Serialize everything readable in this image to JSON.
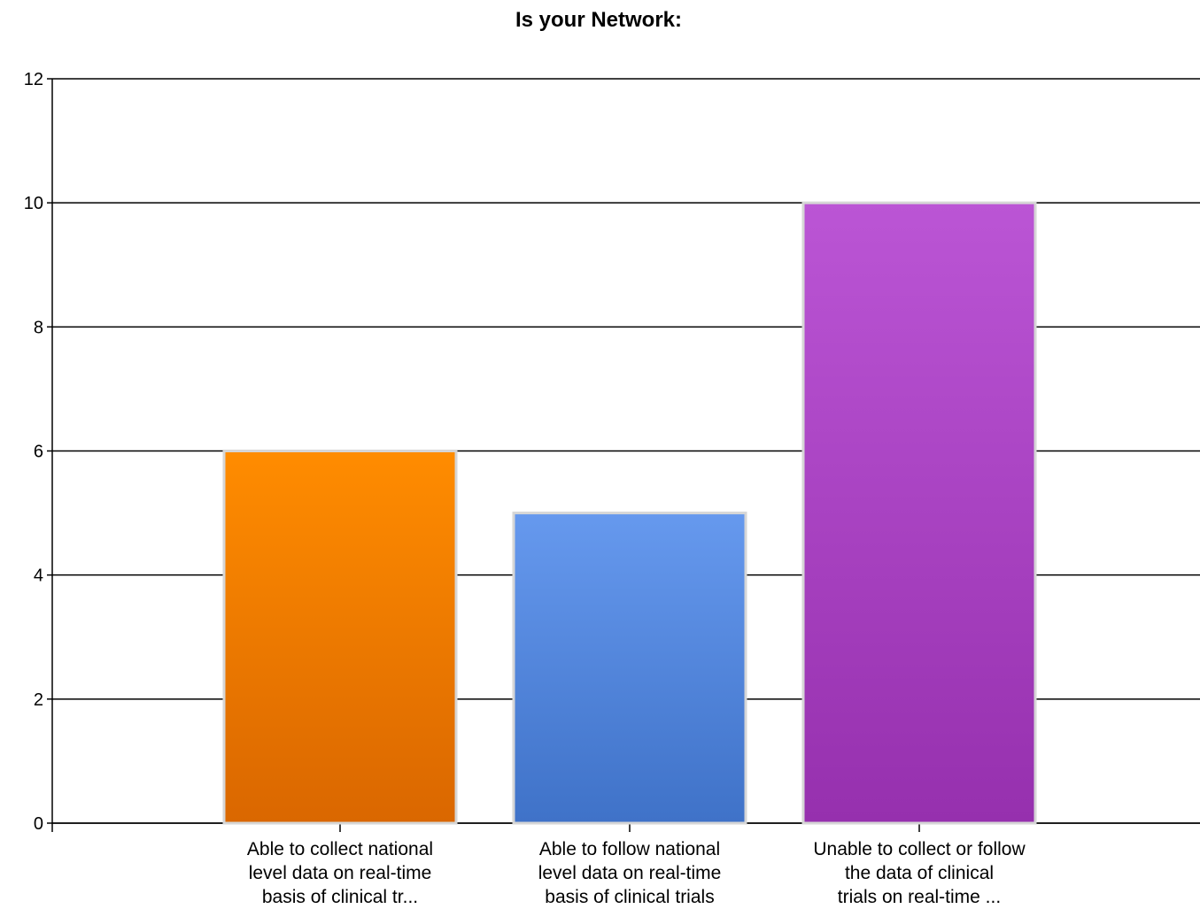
{
  "chart_data": {
    "type": "bar",
    "title": "Is your Network:",
    "xlabel": "",
    "ylabel": "",
    "ylim": [
      0,
      12
    ],
    "yticks": [
      0,
      2,
      4,
      6,
      8,
      10,
      12
    ],
    "grid": true,
    "legend": "none",
    "categories": [
      [
        "Able to collect national",
        "level data on real-time",
        "basis of clinical tr..."
      ],
      [
        "Able to follow national",
        "level data on real-time",
        "basis of clinical trials"
      ],
      [
        "Unable to collect or follow",
        "the data of clinical",
        "trials on real-time ..."
      ]
    ],
    "values": [
      6,
      5,
      10
    ],
    "colors": [
      {
        "top": "#ff8c00",
        "bottom": "#da6700"
      },
      {
        "top": "#6699ee",
        "bottom": "#3f72c8"
      },
      {
        "top": "#bb55d5",
        "bottom": "#9630ae"
      }
    ]
  }
}
